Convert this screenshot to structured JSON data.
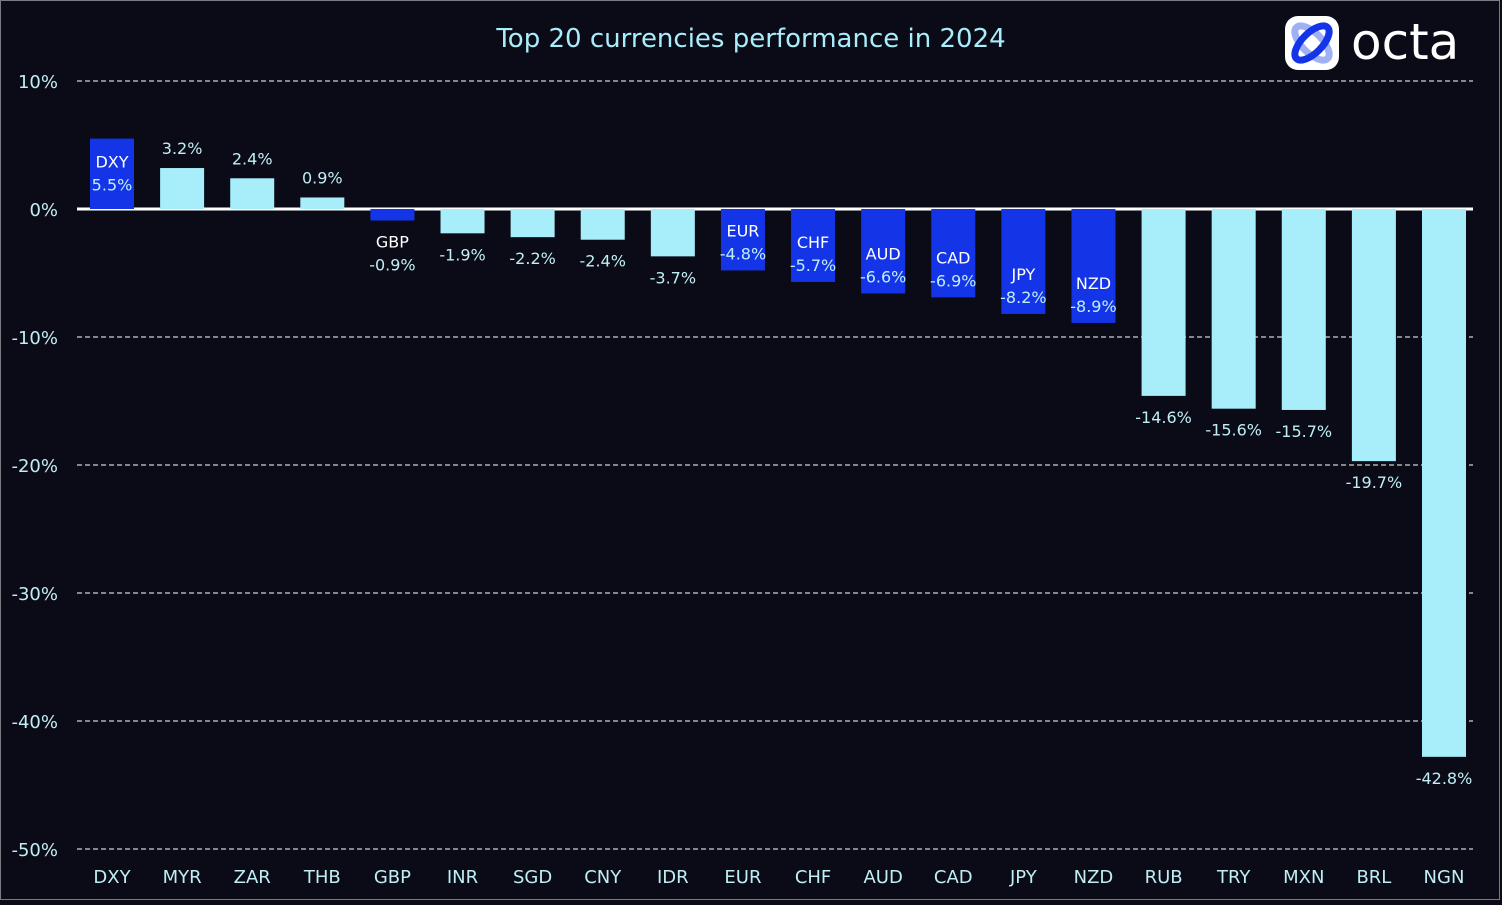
{
  "brand": {
    "name": "octa"
  },
  "colors": {
    "background": "#0b0b18",
    "highlight_bar": "#1434e8",
    "regular_bar": "#a8eefa",
    "text": "#bfeef5",
    "label_white": "#ffffff"
  },
  "chart_data": {
    "type": "bar",
    "title": "Top 20 currencies performance in 2024",
    "xlabel": "",
    "ylabel": "",
    "ylim": [
      -50,
      10
    ],
    "yticks": [
      10,
      0,
      -10,
      -20,
      -30,
      -40,
      -50
    ],
    "ytick_labels": [
      "10%",
      "0%",
      "-10%",
      "-20%",
      "-30%",
      "-40%",
      "-50%"
    ],
    "grid": true,
    "categories": [
      "DXY",
      "MYR",
      "ZAR",
      "THB",
      "GBP",
      "INR",
      "SGD",
      "CNY",
      "IDR",
      "EUR",
      "CHF",
      "AUD",
      "CAD",
      "JPY",
      "NZD",
      "RUB",
      "TRY",
      "MXN",
      "BRL",
      "NGN"
    ],
    "values": [
      5.5,
      3.2,
      2.4,
      0.9,
      -0.9,
      -1.9,
      -2.2,
      -2.4,
      -3.7,
      -4.8,
      -5.7,
      -6.6,
      -6.9,
      -8.2,
      -8.9,
      -14.6,
      -15.6,
      -15.7,
      -19.7,
      -42.8
    ],
    "data_labels": [
      "5.5%",
      "3.2%",
      "2.4%",
      "0.9%",
      "-0.9%",
      "-1.9%",
      "-2.2%",
      "-2.4%",
      "-3.7%",
      "-4.8%",
      "-5.7%",
      "-6.6%",
      "-6.9%",
      "-8.2%",
      "-8.9%",
      "-14.6%",
      "-15.6%",
      "-15.7%",
      "-19.7%",
      "-42.8%"
    ],
    "highlighted": [
      "DXY",
      "GBP",
      "EUR",
      "CHF",
      "AUD",
      "CAD",
      "JPY",
      "NZD"
    ]
  }
}
